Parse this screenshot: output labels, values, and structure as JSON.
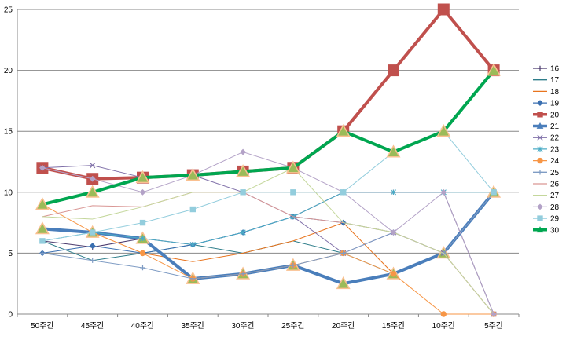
{
  "chart_data": {
    "type": "line",
    "categories": [
      "50주간",
      "45주간",
      "40주간",
      "35주간",
      "30주간",
      "25주간",
      "20주간",
      "15주간",
      "10주간",
      "5주간"
    ],
    "ylim": [
      0,
      25
    ],
    "yticks": [
      0,
      5,
      10,
      15,
      20,
      25
    ],
    "grid": "horizontal",
    "legend": "right",
    "series": [
      {
        "name": "16",
        "color": "#4b3b6e",
        "marker": "plus",
        "width": 1,
        "values": [
          6,
          5.5,
          6.2,
          5.7,
          6.7,
          8,
          10,
          10,
          10,
          0
        ]
      },
      {
        "name": "17",
        "color": "#2e7d8a",
        "marker": "none",
        "width": 1,
        "values": [
          6,
          4.4,
          5,
          5.7,
          5,
          6,
          5,
          3.3,
          5,
          10
        ]
      },
      {
        "name": "18",
        "color": "#e8741e",
        "marker": "none",
        "width": 1,
        "values": [
          7,
          6.7,
          5,
          4.3,
          5,
          6,
          7.5,
          3.3,
          5,
          10
        ]
      },
      {
        "name": "19",
        "color": "#3a6fb0",
        "marker": "diamond",
        "width": 1,
        "values": [
          5,
          5.6,
          5,
          5.7,
          6.7,
          8,
          7.5,
          6.7,
          5,
          10
        ]
      },
      {
        "name": "20",
        "color": "#c0504d",
        "marker": "square",
        "width": 4,
        "values": [
          12,
          11.1,
          11.2,
          11.4,
          11.7,
          12,
          15,
          20,
          25,
          20
        ]
      },
      {
        "name": "21",
        "color": "#4a7ebb",
        "marker": "triangle",
        "width": 4,
        "values": [
          7,
          6.7,
          6.2,
          2.9,
          3.3,
          4,
          2.5,
          3.3,
          5,
          10
        ]
      },
      {
        "name": "22",
        "color": "#7f6fa8",
        "marker": "x",
        "width": 1,
        "values": [
          12,
          12.2,
          11.2,
          11.4,
          10,
          8,
          5,
          6.7,
          5,
          0
        ]
      },
      {
        "name": "23",
        "color": "#4bacc6",
        "marker": "star",
        "width": 1,
        "values": [
          6,
          6.7,
          6.2,
          5.7,
          6.7,
          8,
          10,
          10,
          10,
          10
        ]
      },
      {
        "name": "24",
        "color": "#f79646",
        "marker": "circle",
        "width": 1,
        "values": [
          9,
          6.7,
          5,
          2.9,
          3.3,
          4,
          5,
          3.3,
          0,
          0
        ]
      },
      {
        "name": "25",
        "color": "#7f9cc4",
        "marker": "plus",
        "width": 1,
        "values": [
          5,
          4.4,
          3.8,
          2.9,
          3.3,
          4,
          5,
          6.7,
          5,
          10
        ]
      },
      {
        "name": "26",
        "color": "#d99694",
        "marker": "none",
        "width": 1,
        "values": [
          8,
          8.9,
          8.8,
          10,
          10,
          8,
          7.5,
          6.7,
          5,
          0
        ]
      },
      {
        "name": "27",
        "color": "#c4d79b",
        "marker": "none",
        "width": 1,
        "values": [
          8,
          7.8,
          8.8,
          10,
          10,
          12,
          7.5,
          6.7,
          5,
          0
        ]
      },
      {
        "name": "28",
        "color": "#b3a2c7",
        "marker": "diamond",
        "width": 1,
        "values": [
          12,
          11.1,
          10,
          11.4,
          13.3,
          12,
          10,
          6.7,
          10,
          0
        ]
      },
      {
        "name": "29",
        "color": "#93cddd",
        "marker": "square",
        "width": 1,
        "values": [
          6,
          6.7,
          7.5,
          8.6,
          10,
          10,
          10,
          13.3,
          15,
          10
        ]
      },
      {
        "name": "30",
        "color": "#00a650",
        "marker": "triangle",
        "width": 4,
        "values": [
          9,
          10,
          11.2,
          11.4,
          11.7,
          12,
          15,
          13.3,
          15,
          20
        ]
      }
    ]
  }
}
